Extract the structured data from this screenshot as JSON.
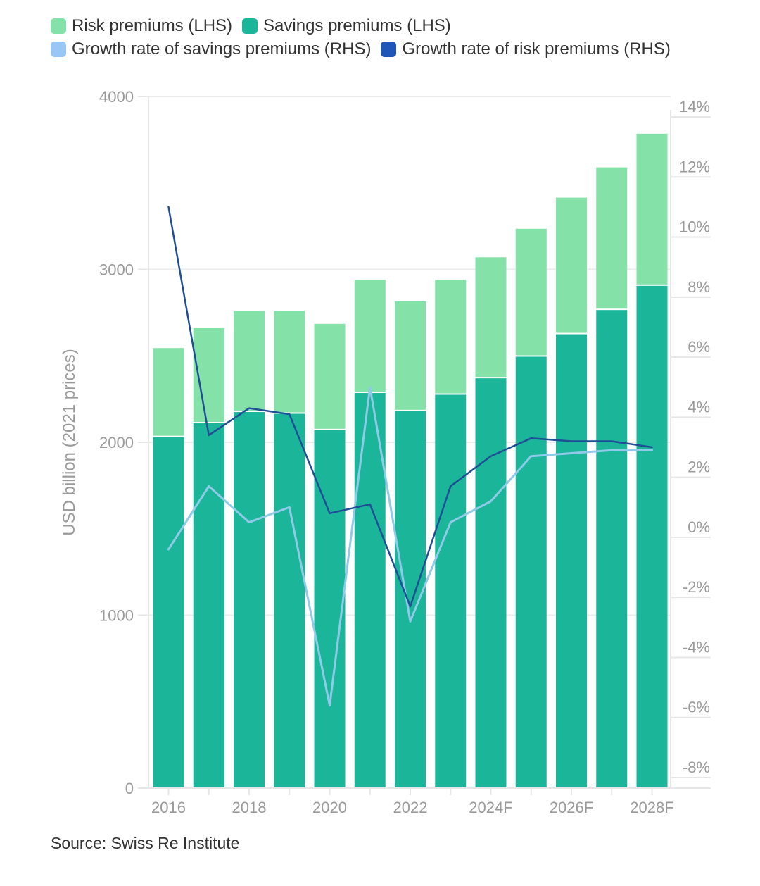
{
  "chart_data": {
    "type": "bar",
    "stacked": true,
    "categories": [
      "2016",
      "2017",
      "2018",
      "2019",
      "2020",
      "2021",
      "2022",
      "2023",
      "2024F",
      "2025F",
      "2026F",
      "2027F",
      "2028F"
    ],
    "x_tick_labels": [
      "2016",
      "",
      "2018",
      "",
      "2020",
      "",
      "2022",
      "",
      "2024F",
      "",
      "2026F",
      "",
      "2028F"
    ],
    "bar_series": [
      {
        "name": "Risk premiums (LHS)",
        "color": "#84e1a8",
        "stack_position": "top",
        "values": [
          515,
          550,
          585,
          595,
          615,
          655,
          635,
          665,
          700,
          740,
          790,
          825,
          880
        ]
      },
      {
        "name": "Savings premiums (LHS)",
        "color": "#1bb59a",
        "stack_position": "bottom",
        "values": [
          2030,
          2110,
          2175,
          2165,
          2070,
          2285,
          2180,
          2275,
          2370,
          2495,
          2625,
          2765,
          2905
        ]
      }
    ],
    "line_series": [
      {
        "name": "Growth rate of savings premiums (RHS)",
        "color": "#8fcbe9",
        "axis": "right",
        "values": [
          -0.4,
          1.7,
          0.5,
          1.0,
          -5.6,
          5.0,
          -2.8,
          0.5,
          1.2,
          2.7,
          2.8,
          2.9,
          2.9
        ]
      },
      {
        "name": "Growth rate of risk premiums (RHS)",
        "color": "#1f4e96",
        "axis": "right",
        "values": [
          11.0,
          3.4,
          4.3,
          4.1,
          0.8,
          1.1,
          -2.3,
          1.7,
          2.7,
          3.3,
          3.2,
          3.2,
          3.0
        ]
      }
    ],
    "legend_swatch_colors": [
      "#84e1a8",
      "#1bb59a",
      "#98c7f5",
      "#1f54b8"
    ],
    "left_axis": {
      "label": "USD billion (2021 prices)",
      "min": 0,
      "max": 4000,
      "ticks": [
        0,
        1000,
        2000,
        3000,
        4000
      ],
      "tick_labels": [
        "0",
        "1000",
        "2000",
        "3000",
        "4000"
      ]
    },
    "right_axis": {
      "min": -8,
      "max": 14,
      "ticks": [
        -8,
        -6,
        -4,
        -2,
        0,
        2,
        4,
        6,
        8,
        10,
        12,
        14
      ],
      "tick_labels": [
        "-8%",
        "-6%",
        "-4%",
        "-2%",
        "0%",
        "2%",
        "4%",
        "6%",
        "8%",
        "10%",
        "12%",
        "14%"
      ]
    },
    "grid": "horizontal",
    "legend_position": "top-left"
  },
  "source": "Source: Swiss Re Institute"
}
